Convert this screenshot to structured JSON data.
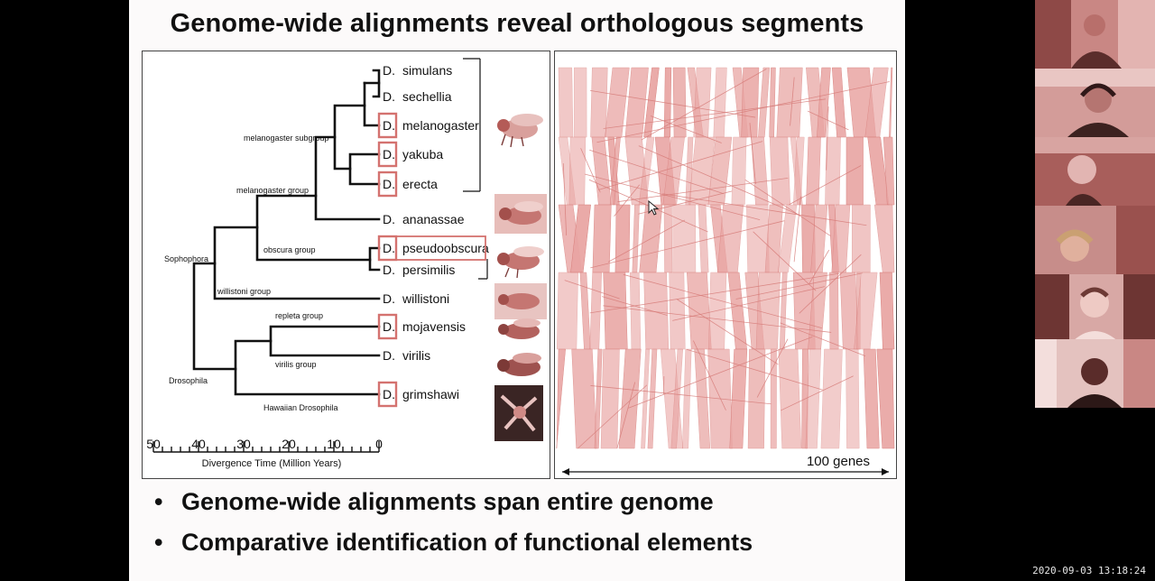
{
  "slide": {
    "title": "Genome-wide alignments reveal orthologous segments",
    "bullets": [
      {
        "dot": "•",
        "text": "Genome-wide alignments span entire genome"
      },
      {
        "dot": "•",
        "text": "Comparative identification of functional elements"
      }
    ]
  },
  "tree": {
    "species": [
      {
        "prefix": "D.",
        "name": "simulans",
        "highlighted": false
      },
      {
        "prefix": "D.",
        "name": "sechellia",
        "highlighted": false
      },
      {
        "prefix": "D.",
        "name": "melanogaster",
        "highlighted": true
      },
      {
        "prefix": "D.",
        "name": "yakuba",
        "highlighted": true
      },
      {
        "prefix": "D.",
        "name": "erecta",
        "highlighted": true
      },
      {
        "prefix": "D.",
        "name": "ananassae",
        "highlighted": false
      },
      {
        "prefix": "D.",
        "name": "pseudoobscura",
        "highlighted": true
      },
      {
        "prefix": "D.",
        "name": "persimilis",
        "highlighted": false
      },
      {
        "prefix": "D.",
        "name": "willistoni",
        "highlighted": false
      },
      {
        "prefix": "D.",
        "name": "mojavensis",
        "highlighted": true
      },
      {
        "prefix": "D.",
        "name": "virilis",
        "highlighted": false
      },
      {
        "prefix": "D.",
        "name": "grimshawi",
        "highlighted": true
      }
    ],
    "clades": {
      "melanogaster_subgroup": "melanogaster subgroup",
      "melanogaster_group": "melanogaster group",
      "obscura_group": "obscura group",
      "sophophora": "Sophophora",
      "willistoni_group": "willistoni group",
      "repleta_group": "repleta group",
      "virilis_group": "virilis group",
      "drosophila": "Drosophila",
      "hawaiian": "Hawaiian Drosophila"
    },
    "axis": {
      "ticks": [
        "50",
        "40",
        "30",
        "20",
        "10",
        "0"
      ],
      "label": "Divergence Time  (Million Years)"
    }
  },
  "alignment": {
    "scale_label": "100 genes"
  },
  "status": {
    "timestamp": "2020-09-03 13:18:24"
  },
  "colors": {
    "highlight_box": "#d4726f",
    "alignment_fill": "#e9a5a3",
    "alignment_line": "#d67a77"
  }
}
